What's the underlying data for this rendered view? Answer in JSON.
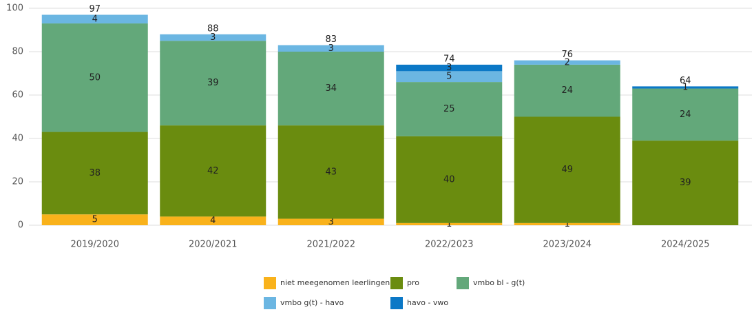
{
  "chart_data": {
    "type": "stacked_bar",
    "categories": [
      "2019/2020",
      "2020/2021",
      "2021/2022",
      "2022/2023",
      "2023/2024",
      "2024/2025"
    ],
    "series": [
      {
        "name": "niet meegenomen leerlingen",
        "color": "#f9b21b",
        "values": [
          5,
          4,
          3,
          1,
          1,
          null
        ]
      },
      {
        "name": "pro",
        "color": "#6a8c0f",
        "values": [
          38,
          42,
          43,
          40,
          49,
          39
        ]
      },
      {
        "name": "vmbo bl - g(t)",
        "color": "#63a87a",
        "values": [
          50,
          39,
          34,
          25,
          24,
          24
        ]
      },
      {
        "name": "vmbo g(t) - havo",
        "color": "#6bb6e2",
        "values": [
          4,
          3,
          3,
          5,
          2,
          null
        ]
      },
      {
        "name": "havo - vwo",
        "color": "#0b78c6",
        "values": [
          null,
          null,
          null,
          3,
          null,
          1
        ]
      }
    ],
    "totals": [
      97,
      88,
      83,
      74,
      76,
      64
    ],
    "ylim": [
      0,
      100
    ],
    "yticks": [
      0,
      20,
      40,
      60,
      80,
      100
    ],
    "grid": true,
    "legend": "bottom"
  }
}
